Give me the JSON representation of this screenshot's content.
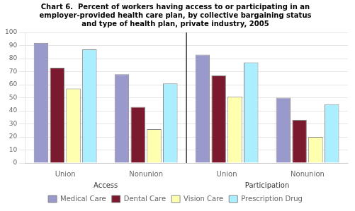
{
  "chart_data": {
    "type": "bar",
    "title": "Chart 6.  Percent of workers having access to or participating in an\nemployer-provided health care plan, by collective bargaining status\nand type of health plan, private industry, 2005",
    "categories": [
      "Union",
      "Nonunion",
      "Union",
      "Nonunion"
    ],
    "series": [
      {
        "name": "Medical Care",
        "color": "#9999cc",
        "values": [
          92,
          68,
          83,
          50
        ]
      },
      {
        "name": "Dental Care",
        "color": "#7b1a2e",
        "values": [
          73,
          43,
          67,
          33
        ]
      },
      {
        "name": "Vision Care",
        "color": "#ffffb0",
        "values": [
          57,
          26,
          51,
          20
        ]
      },
      {
        "name": "Prescription Drug",
        "color": "#aaeeff",
        "values": [
          87,
          61,
          77,
          45
        ]
      }
    ],
    "annotations": [
      {
        "text": "Access",
        "span": [
          0,
          1
        ]
      },
      {
        "text": "Participation",
        "span": [
          2,
          3
        ]
      }
    ],
    "ylim": [
      0,
      100
    ],
    "yticks": [
      0,
      10,
      20,
      30,
      40,
      50,
      60,
      70,
      80,
      90,
      100
    ],
    "grid": true,
    "legend": "bottom"
  }
}
